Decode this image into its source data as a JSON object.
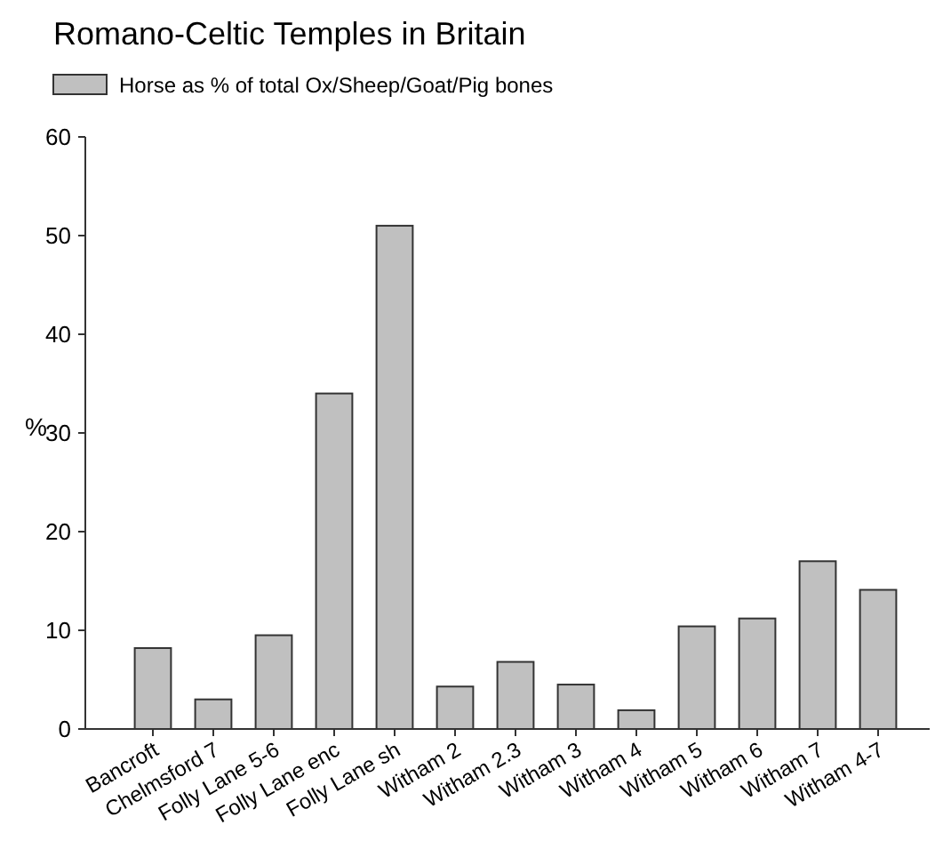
{
  "chart_data": {
    "type": "bar",
    "title": "Romano-Celtic Temples in Britain",
    "ylabel": "%",
    "categories": [
      "Bancroft",
      "Chelmsford 7",
      "Folly Lane 5-6",
      "Folly Lane enc",
      "Folly Lane sh",
      "Witham 2",
      "Witham 2.3",
      "Witham 3",
      "Witham 4",
      "Witham 5",
      "Witham 6",
      "Witham 7",
      "Witham 4-7"
    ],
    "series": [
      {
        "name": "Horse as % of total Ox/Sheep/Goat/Pig bones",
        "color": "#c0c0c0",
        "values": [
          8.2,
          3.0,
          9.5,
          34.0,
          51.0,
          4.3,
          6.8,
          4.5,
          1.9,
          10.4,
          11.2,
          17.0,
          14.1
        ]
      }
    ],
    "ylim": [
      0,
      60
    ],
    "yticks": [
      0,
      10,
      20,
      30,
      40,
      50,
      60
    ],
    "grid": false,
    "legend": "top left"
  }
}
